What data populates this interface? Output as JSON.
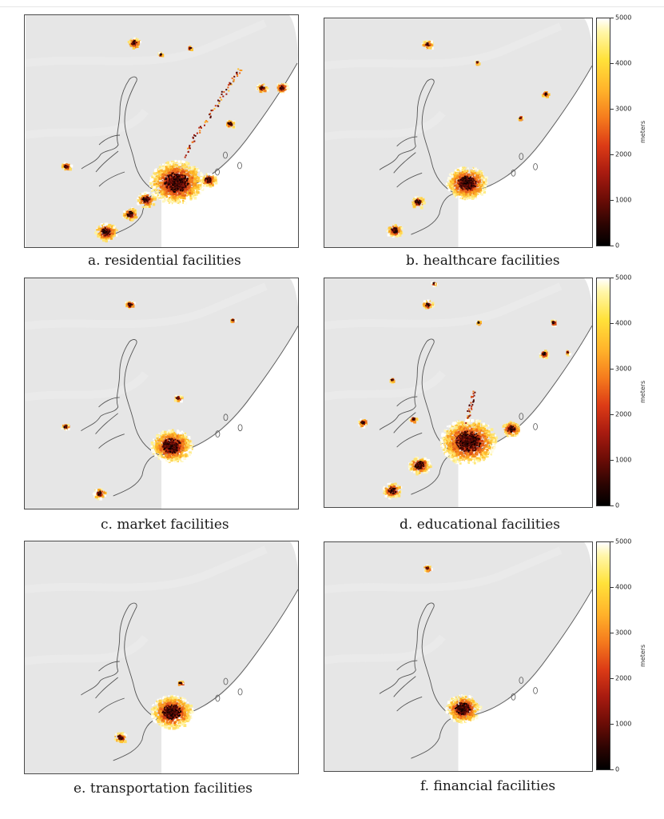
{
  "panels": [
    {
      "id": "a",
      "caption": "a. residential facilities"
    },
    {
      "id": "b",
      "caption": "b. healthcare facilities"
    },
    {
      "id": "c",
      "caption": "c. market facilities"
    },
    {
      "id": "d",
      "caption": "d. educational facilities"
    },
    {
      "id": "e",
      "caption": "e. transportation facilities"
    },
    {
      "id": "f",
      "caption": "f. financial facilities"
    }
  ],
  "colorbar": {
    "unit": "meters",
    "ticks": [
      "5000",
      "4000",
      "3000",
      "2000",
      "1000",
      "0"
    ],
    "colormap": "afmhot",
    "range": [
      0,
      5000
    ]
  },
  "colors": {
    "land": "#e6e6e6",
    "shore": "#555555",
    "border": "#4a4a4a"
  }
}
